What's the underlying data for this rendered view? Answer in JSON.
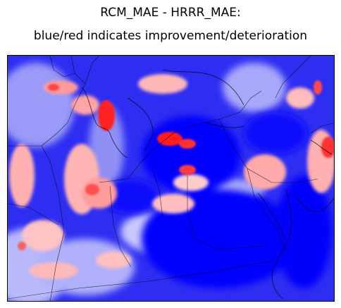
{
  "figure": {
    "title_line1": "RCM_MAE - HRRR_MAE:",
    "title_line2": "blue/red indicates improvement/deterioration"
  },
  "map": {
    "colormap": "bwr",
    "colors": {
      "improvement": "#0000ff",
      "neutral": "#ffffff",
      "deterioration": "#ff0000",
      "boundary_lines": "#000000"
    }
  }
}
